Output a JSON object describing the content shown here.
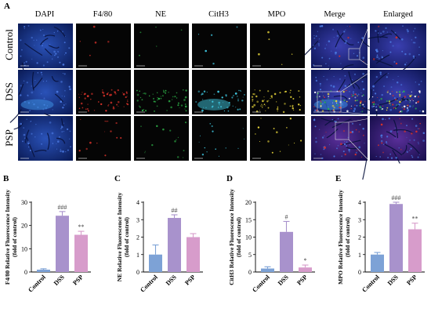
{
  "figure": {
    "panel_letters": [
      "A",
      "B",
      "C",
      "D",
      "E"
    ],
    "micro": {
      "columns": [
        "DAPI",
        "F4/80",
        "NE",
        "CitH3",
        "MPO",
        "Merge",
        "Enlarged"
      ],
      "rows": [
        "Control",
        "DSS",
        "PSP"
      ]
    }
  },
  "colors": {
    "control_bar": "#7da2d6",
    "dss_bar": "#a892cc",
    "psp_bar": "#d79ccb",
    "dapi": "#1d3f9a",
    "f480": "#d8322a",
    "ne": "#2fb54a",
    "cith3": "#3fc7e0",
    "mpo": "#e6d43a"
  },
  "chart_data": [
    {
      "type": "bar",
      "panel": "B",
      "categories": [
        "Control",
        "DSS",
        "PSP"
      ],
      "values": [
        1.0,
        24.2,
        16.0
      ],
      "errors": [
        0.4,
        1.8,
        1.5
      ],
      "sig": [
        "",
        "###",
        "**"
      ],
      "ylabel": "F4/80 Relative Fluorescence Intensity (fold of control)",
      "ylabel_lines": [
        "F4/80 Relative Fluorescence Intensity",
        "(fold of control)"
      ],
      "yticks": [
        0,
        10,
        20,
        30
      ],
      "ylim": [
        0,
        30
      ]
    },
    {
      "type": "bar",
      "panel": "C",
      "categories": [
        "Control",
        "DSS",
        "PSP"
      ],
      "values": [
        1.0,
        3.1,
        2.0
      ],
      "errors": [
        0.55,
        0.18,
        0.2
      ],
      "sig": [
        "",
        "##",
        ""
      ],
      "ylabel": "NE Relative Fluorescence Intensity (fold of control)",
      "ylabel_lines": [
        "NE Relative Fluorescence Intensity",
        "(fold of control)"
      ],
      "yticks": [
        0,
        1,
        2,
        3,
        4
      ],
      "ylim": [
        0,
        4
      ]
    },
    {
      "type": "bar",
      "panel": "D",
      "categories": [
        "Control",
        "DSS",
        "PSP"
      ],
      "values": [
        1.0,
        11.5,
        1.3
      ],
      "errors": [
        0.5,
        3.0,
        0.7
      ],
      "sig": [
        "",
        "#",
        "*"
      ],
      "ylabel": "CitH3 Relative Fluorescence Intensity (fold of control)",
      "ylabel_lines": [
        "CitH3 Relative Fluorescence Intensity",
        "(fold of control)"
      ],
      "yticks": [
        0,
        5,
        10,
        15,
        20
      ],
      "ylim": [
        0,
        20
      ]
    },
    {
      "type": "bar",
      "panel": "E",
      "categories": [
        "Control",
        "DSS",
        "PSP"
      ],
      "values": [
        1.0,
        3.9,
        2.45
      ],
      "errors": [
        0.12,
        0.1,
        0.35
      ],
      "sig": [
        "",
        "###",
        "**"
      ],
      "ylabel": "MPO Relative Fluorescence Intensity (fold of control)",
      "ylabel_lines": [
        "MPO Relative Fluorescence Intensity",
        "(fold of control)"
      ],
      "yticks": [
        0,
        1,
        2,
        3,
        4
      ],
      "ylim": [
        0,
        4
      ]
    }
  ]
}
